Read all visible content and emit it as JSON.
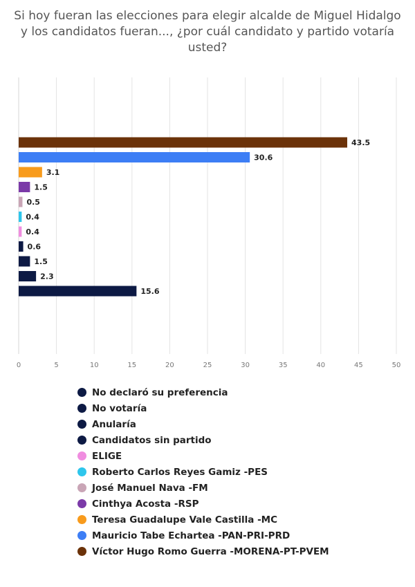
{
  "chart_data": {
    "type": "bar",
    "orientation": "horizontal",
    "title": "Si hoy fueran las elecciones para elegir alcalde de Miguel Hidalgo y los candidatos fueran..., ¿por cuál candidato y partido votaría usted?",
    "categories": [
      "Víctor Hugo Romo Guerra -MORENA-PT-PVEM",
      "Mauricio Tabe Echartea -PAN-PRI-PRD",
      "Teresa Guadalupe Vale Castilla -MC",
      "Cinthya Acosta -RSP",
      "José Manuel Nava -FM",
      "Roberto Carlos Reyes Gamiz -PES",
      "ELIGE",
      "Candidatos sin partido",
      "Anularía",
      "No votaría",
      "No declaró su preferencia"
    ],
    "values": [
      43.5,
      30.6,
      3.1,
      1.5,
      0.5,
      0.4,
      0.4,
      0.6,
      1.5,
      2.3,
      15.6
    ],
    "value_labels": [
      "43.5",
      "30.6",
      "3.1",
      "1.5",
      "0.5",
      "0.4",
      "0.4",
      "0.6",
      "1.5",
      "2.3",
      "15.6"
    ],
    "colors": [
      "#6b3209",
      "#3d7ef5",
      "#f89b1c",
      "#7b3aa8",
      "#c9a5b6",
      "#2ec6ec",
      "#f08de0",
      "#0d1a44",
      "#0d1a44",
      "#0d1a44",
      "#0d1a44"
    ],
    "xlim": [
      0,
      50
    ],
    "xticks": [
      "0",
      "5",
      "10",
      "15",
      "20",
      "25",
      "30",
      "35",
      "40",
      "45",
      "50"
    ],
    "grid": true,
    "legend_position": "bottom",
    "legend": [
      {
        "label": "No declaró su preferencia",
        "color": "#0d1a44"
      },
      {
        "label": "No votaría",
        "color": "#0d1a44"
      },
      {
        "label": "Anularía",
        "color": "#0d1a44"
      },
      {
        "label": "Candidatos sin partido",
        "color": "#0d1a44"
      },
      {
        "label": "ELIGE",
        "color": "#f08de0"
      },
      {
        "label": "Roberto Carlos Reyes Gamiz -PES",
        "color": "#2ec6ec"
      },
      {
        "label": "José Manuel Nava -FM",
        "color": "#c9a5b6"
      },
      {
        "label": "Cinthya Acosta -RSP",
        "color": "#7b3aa8"
      },
      {
        "label": "Teresa Guadalupe Vale Castilla -MC",
        "color": "#f89b1c"
      },
      {
        "label": "Mauricio Tabe Echartea -PAN-PRI-PRD",
        "color": "#3d7ef5"
      },
      {
        "label": "Víctor Hugo Romo Guerra -MORENA-PT-PVEM",
        "color": "#6b3209"
      }
    ]
  }
}
